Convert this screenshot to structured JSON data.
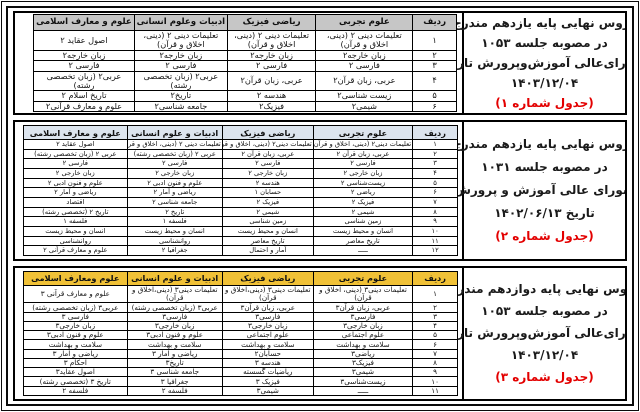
{
  "document": {
    "language": "fa",
    "badge_color": "#e30000",
    "border_color": "#000000"
  },
  "sections": [
    {
      "name": "grade11-current-table",
      "header_bg": "#c6c6c6",
      "note": {
        "lines": [
          "دروس نهایی پایه یازدهم مندرج",
          "در مصوبه جلسه ۱۰۵۳",
          "شورای‌عالی آموزش‌وپرورش تاریخ",
          "۱۴۰۳/۱۲/۰۴"
        ],
        "badge": "(جدول شماره ۱)"
      },
      "columns": [
        "ردیف",
        "علوم تجربی",
        "ریاضی فیزیک",
        "ادبیات وعلوم انسانی",
        "علوم و معارف اسلامی"
      ],
      "col_widths": [
        "10%",
        "23%",
        "21%",
        "22%",
        "24%"
      ],
      "rows": [
        [
          "۱",
          "تعلیمات دینی ۲ (دینی، اخلاق و قرآن)",
          "تعلیمات دینی ۲ (دینی، اخلاق و قرآن)",
          "تعلیمات دینی ۲ (دینی، اخلاق و قرآن)",
          "اصول عقاید ۲"
        ],
        [
          "۲",
          "زبان خارجه۲",
          "زبان خارجه۲",
          "زبان خارجه۲",
          "زبان خارجه۲"
        ],
        [
          "۳",
          "فارسی ۲",
          "فارسی ۲",
          "فارسی ۲",
          "فارسی ۲"
        ],
        [
          "۴",
          "عربی، زبان قرآن۲",
          "عربی، زبان قرآن۲",
          "عربی۲ (زبان تخصصی رشته)",
          "عربی۲ (زبان تخصصی رشته)"
        ],
        [
          "۵",
          "زیست شناسی۲",
          "هندسه ۲",
          "تاریخ۲",
          "تاریخ اسلام ۲"
        ],
        [
          "۶",
          "شیمی۲",
          "فیزیک۲",
          "جامعه شناسی۲",
          "علوم و معارف قرآنی۲"
        ]
      ]
    },
    {
      "name": "grade11-previous-table",
      "header_bg": "#dce4ee",
      "note": {
        "lines": [
          "دروس نهایی پایه یازدهم مندرج",
          "در مصوبه جلسه ۱۰۳۱",
          "شورای عالی آموزش و پرورش",
          "تاریخ ۱۴۰۲/۰۶/۱۳"
        ],
        "badge": "(جدول شماره ۲)"
      },
      "columns": [
        "ردیف",
        "علوم تجربی",
        "ریاضی فیزیک",
        "ادبیات و علوم انسانی",
        "علوم و معارف اسلامی"
      ],
      "col_widths": [
        "10%",
        "23%",
        "21%",
        "22%",
        "24%"
      ],
      "rows": [
        [
          "۱",
          "تعلیمات دینی۲ (دینی، اخلاق و قرآن)",
          "تعلیمات دینی۲ (دینی، اخلاق و قرآن)",
          "تعلیمات دینی ۲ (دینی، اخلاق و قرآن)",
          "اصول عقاید ۲"
        ],
        [
          "۲",
          "عربی، زبان قرآن ۲",
          "عربی، زبان قرآن ۲",
          "عربی ۲ (زبان تخصصی رشته)",
          "عربی ۲ (زبان تخصصی رشته)"
        ],
        [
          "۳",
          "فارسی ۲",
          "فارسی ۲",
          "فارسی ۲",
          "فارسی ۲"
        ],
        [
          "۴",
          "زبان خارجی ۲",
          "زبان خارجی ۲",
          "زبان خارجی ۲",
          "زبان خارجی ۲"
        ],
        [
          "۵",
          "زیست‌شناسی ۲",
          "هندسه ۲",
          "علوم و فنون ادبی ۲",
          "علوم و فنون ادبی ۲"
        ],
        [
          "۶",
          "ریاضی ۲",
          "حسابان ۱",
          "ریاضی و آمار ۲",
          "ریاضی و آمار ۲"
        ],
        [
          "۷",
          "فیزیک ۲",
          "فیزیک ۲",
          "جامعه شناسی ۲",
          "اقتصاد"
        ],
        [
          "۸",
          "شیمی ۲",
          "شیمی ۲",
          "تاریخ ۲",
          "تاریخ ۲ (تخصصی رشته)"
        ],
        [
          "۹",
          "زمین شناسی",
          "زمین شناسی",
          "فلسفه ۱",
          "فلسفه ۱"
        ],
        [
          "۱۰",
          "انسان و محیط زیست",
          "انسان و محیط زیست",
          "انسان و محیط زیست",
          "انسان و محیط زیست"
        ],
        [
          "۱۱",
          "تاریخ معاصر",
          "تاریخ معاصر",
          "روانشناسی",
          "روانشناسی"
        ],
        [
          "۱۲",
          "ـــــ",
          "آمار و احتمال",
          "جغرافیا ۲",
          "علوم و معارف قرآنی ۲"
        ]
      ]
    },
    {
      "name": "grade12-table",
      "header_bg": "#f0c137",
      "note": {
        "lines": [
          "دروس نهایی پایه دوازدهم مندرج",
          "در مصوبه جلسه ۱۰۵۳",
          "شورای‌عالی آموزش‌وپرورش تاریخ",
          "۱۴۰۳/۱۲/۰۴"
        ],
        "badge": "(جدول شماره ۳)"
      },
      "columns": [
        "ردیف",
        "علوم تجربی",
        "ریاضی فیزیک",
        "ادبیات و علوم انسانی",
        "علوم ومعارف اسلامی"
      ],
      "col_widths": [
        "10%",
        "23%",
        "21%",
        "22%",
        "24%"
      ],
      "rows": [
        [
          "۱",
          "تعلیمات دینی۳ (دینی، اخلاق و قرآن)",
          "تعلیمات دینی۳ (دینی،اخلاق و قرآن)",
          "تعلیمات دینی۳ (دینی،اخلاق و قرآن)",
          "علوم و معارف قرآنی ۳"
        ],
        [
          "۲",
          "عربی، زبان قرآن۳",
          "عربی، زبان قرآن۳",
          "عربی۳ (زبان تخصصی رشته)",
          "عربی۳ (زبان تخصصی رشته)"
        ],
        [
          "۳",
          "فارسی۳",
          "فارسی۳",
          "فارسی۳",
          "فارسی ۳"
        ],
        [
          "۴",
          "زبان خارجی۳",
          "زبان خارجی۳",
          "زبان خارجی۳",
          "زبان خارجی۳"
        ],
        [
          "۵",
          "علوم اجتماعی",
          "علوم اجتماعی",
          "علوم و فنون ادبی۳",
          "علوم و فنون ادبی۳"
        ],
        [
          "۶",
          "سلامت و بهداشت",
          "سلامت و بهداشت",
          "سلامت و بهداشت",
          "سلامت و بهداشت"
        ],
        [
          "۷",
          "ریاضی۳",
          "حسابان۲",
          "ریاضی و آمار ۳",
          "ریاضی و آمار ۳"
        ],
        [
          "۸",
          "فیزیک۳",
          "هندسه ۳",
          "تاریخ۳",
          "احکام ۳"
        ],
        [
          "۹",
          "شیمی۳",
          "ریاضیات گسسته",
          "جامعه شناسی ۳",
          "اصول عقاید۳"
        ],
        [
          "۱۰",
          "زیست‌شناسی۳",
          "فیزیک ۳",
          "جغرافیا ۳",
          "تاریخ ۳ (تخصصی رشته)"
        ],
        [
          "۱۱",
          "ـــــ",
          "شیمی۳",
          "فلسفه ۲",
          "فلسفه ۲"
        ]
      ]
    }
  ]
}
